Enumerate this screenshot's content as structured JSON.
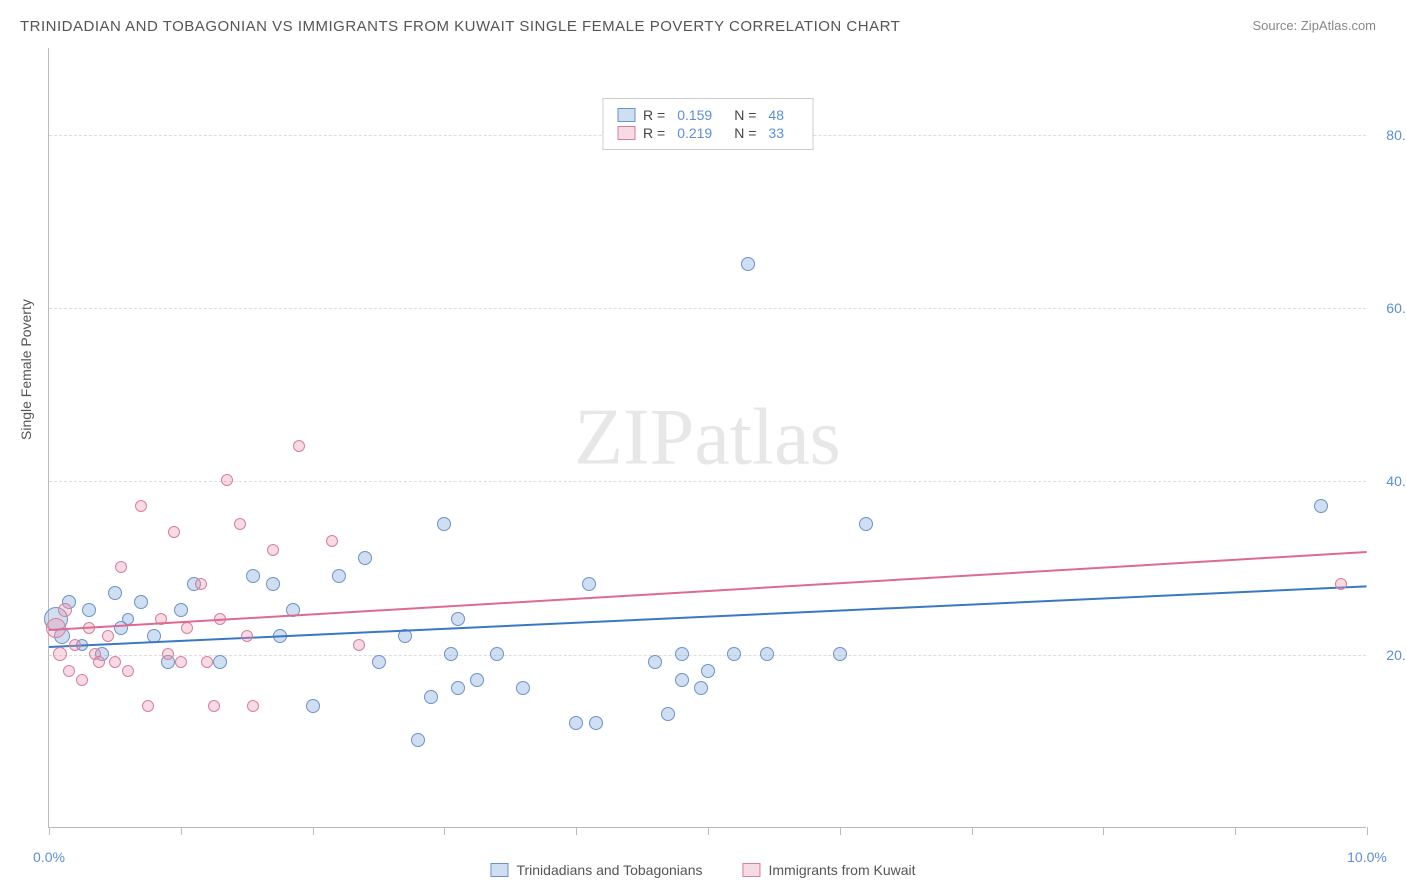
{
  "title": "TRINIDADIAN AND TOBAGONIAN VS IMMIGRANTS FROM KUWAIT SINGLE FEMALE POVERTY CORRELATION CHART",
  "source_label": "Source: ZipAtlas.com",
  "y_axis_label": "Single Female Poverty",
  "watermark_a": "ZIP",
  "watermark_b": "atlas",
  "chart": {
    "type": "scatter",
    "xlim": [
      0,
      10
    ],
    "ylim": [
      0,
      90
    ],
    "x_ticks": [
      0,
      1,
      2,
      3,
      4,
      5,
      6,
      7,
      8,
      9,
      10
    ],
    "x_tick_labels": {
      "0": "0.0%",
      "10": "10.0%"
    },
    "y_gridlines": [
      20,
      40,
      60,
      80
    ],
    "y_tick_labels": {
      "20": "20.0%",
      "40": "40.0%",
      "60": "60.0%",
      "80": "80.0%"
    },
    "grid_color": "#dddddd",
    "axis_color": "#bbbbbb",
    "background_color": "#ffffff",
    "tick_label_color": "#5b8fd6"
  },
  "series": [
    {
      "key": "trinidad",
      "label": "Trinidadians and Tobagonians",
      "fill": "rgba(120,160,215,0.35)",
      "stroke": "#6a93c9",
      "line_color": "#3b78c4",
      "R_label": "R =",
      "R": "0.159",
      "N_label": "N =",
      "N": "48",
      "trend": {
        "x1": 0,
        "y1": 21.0,
        "x2": 10,
        "y2": 28.0
      },
      "points": [
        {
          "x": 0.05,
          "y": 24,
          "r": 12
        },
        {
          "x": 0.1,
          "y": 22,
          "r": 8
        },
        {
          "x": 0.15,
          "y": 26,
          "r": 7
        },
        {
          "x": 0.3,
          "y": 25,
          "r": 7
        },
        {
          "x": 0.4,
          "y": 20,
          "r": 7
        },
        {
          "x": 0.5,
          "y": 27,
          "r": 7
        },
        {
          "x": 0.55,
          "y": 23,
          "r": 7
        },
        {
          "x": 0.7,
          "y": 26,
          "r": 7
        },
        {
          "x": 0.8,
          "y": 22,
          "r": 7
        },
        {
          "x": 0.9,
          "y": 19,
          "r": 7
        },
        {
          "x": 1.0,
          "y": 25,
          "r": 7
        },
        {
          "x": 1.1,
          "y": 28,
          "r": 7
        },
        {
          "x": 1.3,
          "y": 19,
          "r": 7
        },
        {
          "x": 1.55,
          "y": 29,
          "r": 7
        },
        {
          "x": 1.7,
          "y": 28,
          "r": 7
        },
        {
          "x": 1.75,
          "y": 22,
          "r": 7
        },
        {
          "x": 1.85,
          "y": 25,
          "r": 7
        },
        {
          "x": 2.0,
          "y": 14,
          "r": 7
        },
        {
          "x": 2.2,
          "y": 29,
          "r": 7
        },
        {
          "x": 2.4,
          "y": 31,
          "r": 7
        },
        {
          "x": 2.5,
          "y": 19,
          "r": 7
        },
        {
          "x": 2.7,
          "y": 22,
          "r": 7
        },
        {
          "x": 2.8,
          "y": 10,
          "r": 7
        },
        {
          "x": 2.9,
          "y": 15,
          "r": 7
        },
        {
          "x": 3.0,
          "y": 35,
          "r": 7
        },
        {
          "x": 3.05,
          "y": 20,
          "r": 7
        },
        {
          "x": 3.1,
          "y": 16,
          "r": 7
        },
        {
          "x": 3.1,
          "y": 24,
          "r": 7
        },
        {
          "x": 3.25,
          "y": 17,
          "r": 7
        },
        {
          "x": 3.4,
          "y": 20,
          "r": 7
        },
        {
          "x": 3.6,
          "y": 16,
          "r": 7
        },
        {
          "x": 4.0,
          "y": 12,
          "r": 7
        },
        {
          "x": 4.1,
          "y": 28,
          "r": 7
        },
        {
          "x": 4.15,
          "y": 12,
          "r": 7
        },
        {
          "x": 4.6,
          "y": 19,
          "r": 7
        },
        {
          "x": 4.7,
          "y": 13,
          "r": 7
        },
        {
          "x": 4.8,
          "y": 17,
          "r": 7
        },
        {
          "x": 4.8,
          "y": 20,
          "r": 7
        },
        {
          "x": 4.95,
          "y": 16,
          "r": 7
        },
        {
          "x": 5.0,
          "y": 18,
          "r": 7
        },
        {
          "x": 5.2,
          "y": 20,
          "r": 7
        },
        {
          "x": 5.3,
          "y": 65,
          "r": 7
        },
        {
          "x": 5.45,
          "y": 20,
          "r": 7
        },
        {
          "x": 6.0,
          "y": 20,
          "r": 7
        },
        {
          "x": 6.2,
          "y": 35,
          "r": 7
        },
        {
          "x": 9.65,
          "y": 37,
          "r": 7
        },
        {
          "x": 0.25,
          "y": 21,
          "r": 6
        },
        {
          "x": 0.6,
          "y": 24,
          "r": 6
        }
      ]
    },
    {
      "key": "kuwait",
      "label": "Immigrants from Kuwait",
      "fill": "rgba(235,150,175,0.35)",
      "stroke": "#d87f9e",
      "line_color": "#e06a8f",
      "R_label": "R =",
      "R": "0.219",
      "N_label": "N =",
      "N": "33",
      "trend": {
        "x1": 0,
        "y1": 23.0,
        "x2": 10,
        "y2": 32.0
      },
      "points": [
        {
          "x": 0.05,
          "y": 23,
          "r": 10
        },
        {
          "x": 0.08,
          "y": 20,
          "r": 7
        },
        {
          "x": 0.12,
          "y": 25,
          "r": 7
        },
        {
          "x": 0.15,
          "y": 18,
          "r": 6
        },
        {
          "x": 0.2,
          "y": 21,
          "r": 6
        },
        {
          "x": 0.25,
          "y": 17,
          "r": 6
        },
        {
          "x": 0.3,
          "y": 23,
          "r": 6
        },
        {
          "x": 0.35,
          "y": 20,
          "r": 6
        },
        {
          "x": 0.38,
          "y": 19,
          "r": 6
        },
        {
          "x": 0.45,
          "y": 22,
          "r": 6
        },
        {
          "x": 0.5,
          "y": 19,
          "r": 6
        },
        {
          "x": 0.55,
          "y": 30,
          "r": 6
        },
        {
          "x": 0.6,
          "y": 18,
          "r": 6
        },
        {
          "x": 0.7,
          "y": 37,
          "r": 6
        },
        {
          "x": 0.75,
          "y": 14,
          "r": 6
        },
        {
          "x": 0.85,
          "y": 24,
          "r": 6
        },
        {
          "x": 0.9,
          "y": 20,
          "r": 6
        },
        {
          "x": 0.95,
          "y": 34,
          "r": 6
        },
        {
          "x": 1.0,
          "y": 19,
          "r": 6
        },
        {
          "x": 1.05,
          "y": 23,
          "r": 6
        },
        {
          "x": 1.15,
          "y": 28,
          "r": 6
        },
        {
          "x": 1.2,
          "y": 19,
          "r": 6
        },
        {
          "x": 1.25,
          "y": 14,
          "r": 6
        },
        {
          "x": 1.3,
          "y": 24,
          "r": 6
        },
        {
          "x": 1.35,
          "y": 40,
          "r": 6
        },
        {
          "x": 1.45,
          "y": 35,
          "r": 6
        },
        {
          "x": 1.5,
          "y": 22,
          "r": 6
        },
        {
          "x": 1.55,
          "y": 14,
          "r": 6
        },
        {
          "x": 1.7,
          "y": 32,
          "r": 6
        },
        {
          "x": 1.9,
          "y": 44,
          "r": 6
        },
        {
          "x": 2.15,
          "y": 33,
          "r": 6
        },
        {
          "x": 2.35,
          "y": 21,
          "r": 6
        },
        {
          "x": 9.8,
          "y": 28,
          "r": 6
        }
      ]
    }
  ],
  "legend_bottom": [
    {
      "series": "trinidad"
    },
    {
      "series": "kuwait"
    }
  ]
}
